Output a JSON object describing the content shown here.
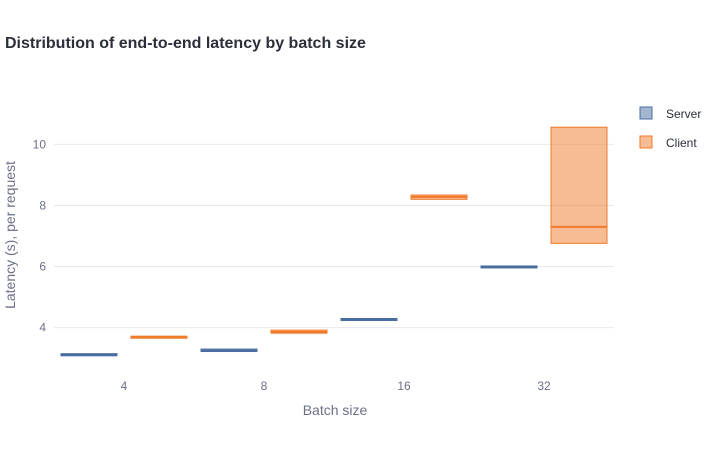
{
  "chart_data": {
    "type": "box",
    "title": "Distribution of end-to-end latency by batch size",
    "xlabel": "Batch size",
    "ylabel": "Latency (s), per request",
    "categories": [
      "4",
      "8",
      "16",
      "32"
    ],
    "ylim": [
      2.55,
      11.45
    ],
    "yticks": [
      4,
      6,
      8,
      10
    ],
    "grid": true,
    "legend_position": "top-right",
    "series": [
      {
        "name": "Server",
        "color": "#4a6da0",
        "boxes": [
          {
            "q1": 3.08,
            "median": 3.12,
            "q3": 3.15
          },
          {
            "q1": 3.22,
            "median": 3.25,
            "q3": 3.3
          },
          {
            "q1": 4.25,
            "median": 4.28,
            "q3": 4.3
          },
          {
            "q1": 5.97,
            "median": 6.0,
            "q3": 6.02
          }
        ]
      },
      {
        "name": "Client",
        "color": "#f07a2a",
        "boxes": [
          {
            "q1": 3.68,
            "median": 3.7,
            "q3": 3.72
          },
          {
            "q1": 3.82,
            "median": 3.86,
            "q3": 3.92
          },
          {
            "q1": 8.2,
            "median": 8.28,
            "q3": 8.34
          },
          {
            "q1": 6.76,
            "median": 7.3,
            "q3": 10.56
          }
        ]
      }
    ]
  }
}
